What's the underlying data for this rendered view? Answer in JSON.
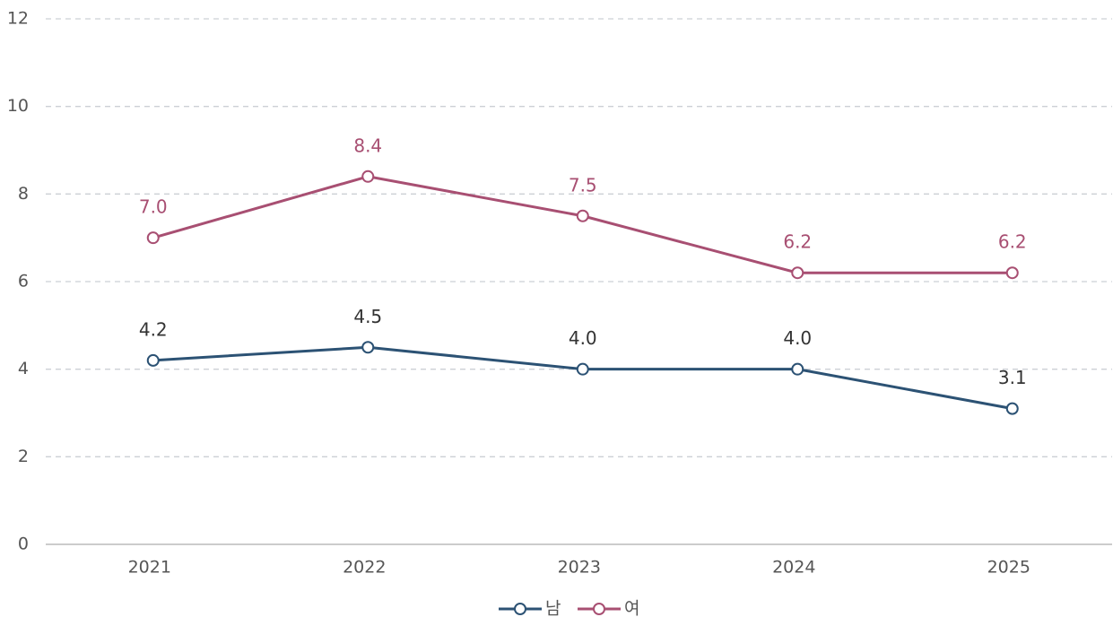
{
  "chart_data": {
    "type": "line",
    "categories": [
      "2021",
      "2022",
      "2023",
      "2024",
      "2025"
    ],
    "series": [
      {
        "name": "남",
        "color": "#2c5274",
        "values": [
          4.2,
          4.5,
          4,
          4,
          3.1
        ],
        "value_labels": [
          "4.2",
          "4.5",
          "4.0",
          "4.0",
          "3.1"
        ]
      },
      {
        "name": "여",
        "color": "#a84f72",
        "values": [
          7,
          8.4,
          7.5,
          6.2,
          6.2
        ],
        "value_labels": [
          "7.0",
          "8.4",
          "7.5",
          "6.2",
          "6.2"
        ]
      }
    ],
    "ylim": [
      0,
      12
    ],
    "yticks": [
      0,
      2,
      4,
      6,
      8,
      10,
      12
    ],
    "grid": true,
    "legend": "bottom"
  }
}
